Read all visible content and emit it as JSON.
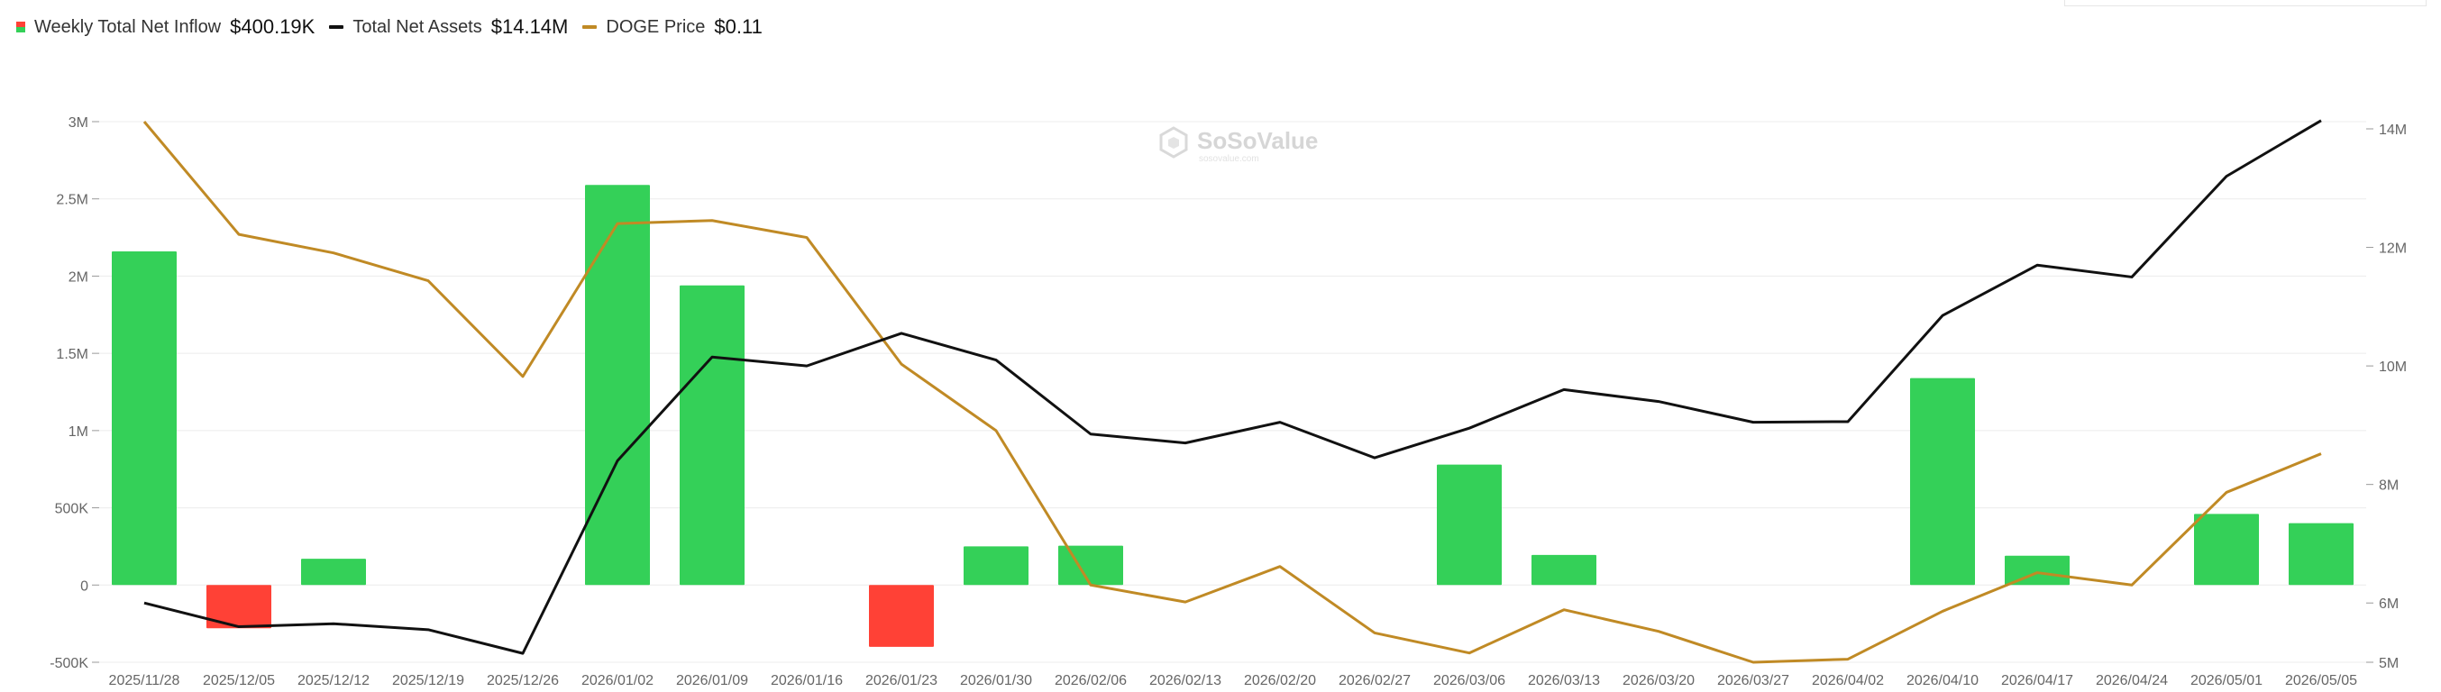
{
  "legend": {
    "inflow_label": "Weekly Total Net Inflow",
    "inflow_value": "$400.19K",
    "assets_label": "Total Net Assets",
    "assets_value": "$14.14M",
    "price_label": "DOGE Price",
    "price_value": "$0.11"
  },
  "watermark": {
    "name": "SoSoValue",
    "domain": "sosovalue.com"
  },
  "colors": {
    "positive": "#34d058",
    "negative": "#ff4136",
    "assets_line": "#111111",
    "price_line": "#c08a25",
    "grid": "#ececec"
  },
  "chart_data": {
    "type": "bar",
    "title": "",
    "categories": [
      "2025/11/28",
      "2025/12/05",
      "2025/12/12",
      "2025/12/19",
      "2025/12/26",
      "2026/01/02",
      "2026/01/09",
      "2026/01/16",
      "2026/01/23",
      "2026/01/30",
      "2026/02/06",
      "2026/02/13",
      "2026/02/20",
      "2026/02/27",
      "2026/03/06",
      "2026/03/13",
      "2026/03/20",
      "2026/03/27",
      "2026/04/02",
      "2026/04/10",
      "2026/04/17",
      "2026/04/24",
      "2026/05/01",
      "2026/05/05"
    ],
    "series": [
      {
        "name": "Weekly Total Net Inflow",
        "type": "bar",
        "axis": "left",
        "values": [
          2160000,
          -280000,
          170000,
          0,
          0,
          2590000,
          1940000,
          0,
          -400000,
          250000,
          255000,
          0,
          0,
          0,
          780000,
          195000,
          0,
          0,
          0,
          1340000,
          190000,
          0,
          460000,
          400190
        ]
      },
      {
        "name": "Total Net Assets",
        "type": "line",
        "axis": "right",
        "values": [
          6.0,
          5.6,
          5.65,
          5.55,
          5.15,
          8.4,
          10.15,
          10.0,
          10.55,
          10.1,
          8.85,
          8.7,
          9.05,
          8.45,
          8.95,
          9.6,
          9.4,
          9.05,
          9.06,
          10.85,
          11.7,
          11.5,
          13.2,
          14.14
        ]
      },
      {
        "name": "DOGE Price",
        "type": "line",
        "axis": "left-scaled",
        "values": [
          3000000,
          2270000,
          2150000,
          1970000,
          1350000,
          2340000,
          2360000,
          2250000,
          1430000,
          1000000,
          0,
          -110000,
          120000,
          -310000,
          -440000,
          -160000,
          -300000,
          -500000,
          -480000,
          -170000,
          80000,
          0,
          600000,
          850000
        ]
      }
    ],
    "y_left": {
      "ylim": [
        -500000,
        3000000
      ],
      "ticks": [
        -500000,
        0,
        500000,
        1000000,
        1500000,
        2000000,
        2500000,
        3000000
      ],
      "tick_labels": [
        "-500K",
        "0",
        "500K",
        "1M",
        "1.5M",
        "2M",
        "2.5M",
        "3M"
      ]
    },
    "y_right": {
      "ylim": [
        5,
        14.14
      ],
      "ticks": [
        5,
        6,
        8,
        10,
        12,
        14
      ],
      "tick_labels": [
        "5M",
        "6M",
        "8M",
        "10M",
        "12M",
        "14M"
      ]
    },
    "grid": true,
    "legend_position": "top-left"
  }
}
